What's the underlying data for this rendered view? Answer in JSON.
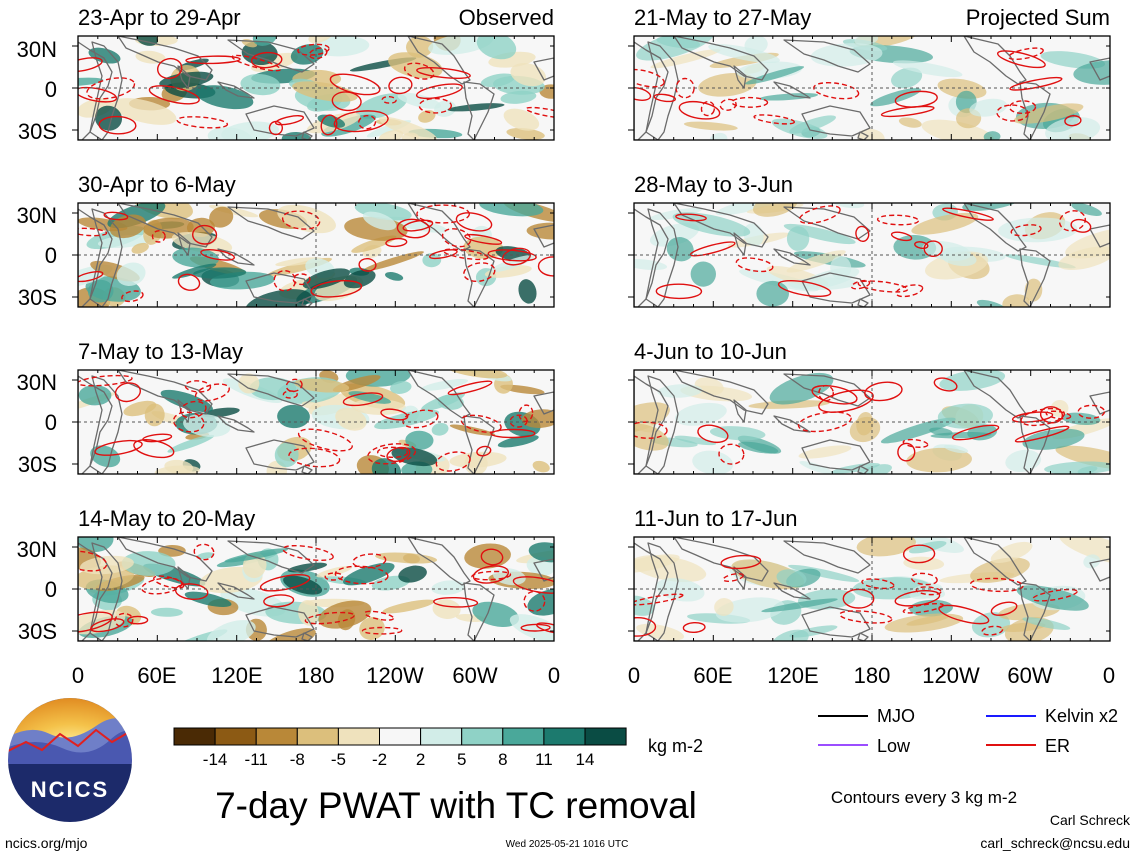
{
  "columns": [
    {
      "corner_title": "Observed",
      "panels": [
        {
          "title": "23-Apr to 29-Apr",
          "seed": 11
        },
        {
          "title": "30-Apr to 6-May",
          "seed": 23
        },
        {
          "title": "7-May to 13-May",
          "seed": 37
        },
        {
          "title": "14-May to 20-May",
          "seed": 41
        }
      ]
    },
    {
      "corner_title": "Projected Sum",
      "panels": [
        {
          "title": "21-May to 27-May",
          "seed": 53
        },
        {
          "title": "28-May to 3-Jun",
          "seed": 67
        },
        {
          "title": "4-Jun to 10-Jun",
          "seed": 71
        },
        {
          "title": "11-Jun to 17-Jun",
          "seed": 89
        }
      ]
    }
  ],
  "lat_labels": [
    "30N",
    "0",
    "30S"
  ],
  "lon_labels": [
    "0",
    "60E",
    "120E",
    "180",
    "120W",
    "60W",
    "0"
  ],
  "colorbar": {
    "colors": [
      "#4a2a05",
      "#8c5a14",
      "#b98838",
      "#dcbf7c",
      "#efe2bd",
      "#f7f7f7",
      "#d2ede8",
      "#8fd2c6",
      "#4aa89a",
      "#1c7a6e",
      "#0a4c44"
    ],
    "tick_labels": [
      "-14",
      "-11",
      "-8",
      "-5",
      "-2",
      "2",
      "5",
      "8",
      "11",
      "14"
    ],
    "units": "kg m-2"
  },
  "legend": [
    {
      "label": "MJO",
      "color": "#000000"
    },
    {
      "label": "Kelvin x2",
      "color": "#1a1aff"
    },
    {
      "label": "Low",
      "color": "#9b4dff"
    },
    {
      "label": "ER",
      "color": "#e01010"
    }
  ],
  "contour_note": "Contours every 3 kg m-2",
  "main_title": "7-day PWAT with TC removal",
  "logo": {
    "text": "NCICS"
  },
  "footer": {
    "left": "ncics.org/mjo",
    "center": "Wed 2025-05-21 1016 UTC",
    "author": "Carl Schreck",
    "email": "carl_schreck@ncsu.edu"
  }
}
